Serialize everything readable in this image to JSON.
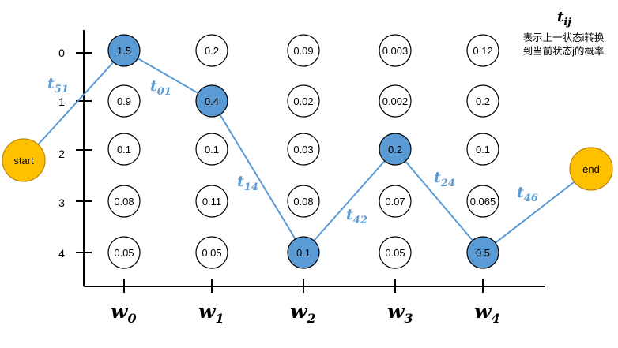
{
  "legend": {
    "symbol": "t",
    "symbol_sub": "ij",
    "line1": "表示上一状态i转换",
    "line2": "到当前状态j的概率"
  },
  "start_label": "start",
  "end_label": "end",
  "state_labels": [
    "0",
    "1",
    "2",
    "3",
    "4"
  ],
  "columns": [
    {
      "base": "w",
      "sub": "0",
      "values": [
        "1.5",
        "0.9",
        "0.1",
        "0.08",
        "0.05"
      ]
    },
    {
      "base": "w",
      "sub": "1",
      "values": [
        "0.2",
        "0.4",
        "0.1",
        "0.11",
        "0.05"
      ]
    },
    {
      "base": "w",
      "sub": "2",
      "values": [
        "0.09",
        "0.02",
        "0.03",
        "0.08",
        "0.1"
      ]
    },
    {
      "base": "w",
      "sub": "3",
      "values": [
        "0.003",
        "0.002",
        "0.2",
        "0.07",
        "0.05"
      ]
    },
    {
      "base": "w",
      "sub": "4",
      "values": [
        "0.12",
        "0.2",
        "0.1",
        "0.065",
        "0.5"
      ]
    }
  ],
  "best_path": [
    0,
    1,
    4,
    2,
    4
  ],
  "transitions": [
    {
      "base": "t",
      "sub": "51"
    },
    {
      "base": "t",
      "sub": "01"
    },
    {
      "base": "t",
      "sub": "14"
    },
    {
      "base": "t",
      "sub": "42"
    },
    {
      "base": "t",
      "sub": "24"
    },
    {
      "base": "t",
      "sub": "46"
    }
  ],
  "colors": {
    "highlight_fill": "#5b9bd5",
    "path": "#5b9bd5",
    "terminal_fill": "#ffc000",
    "terminal_stroke": "#b8860b",
    "node_stroke": "#000000"
  }
}
